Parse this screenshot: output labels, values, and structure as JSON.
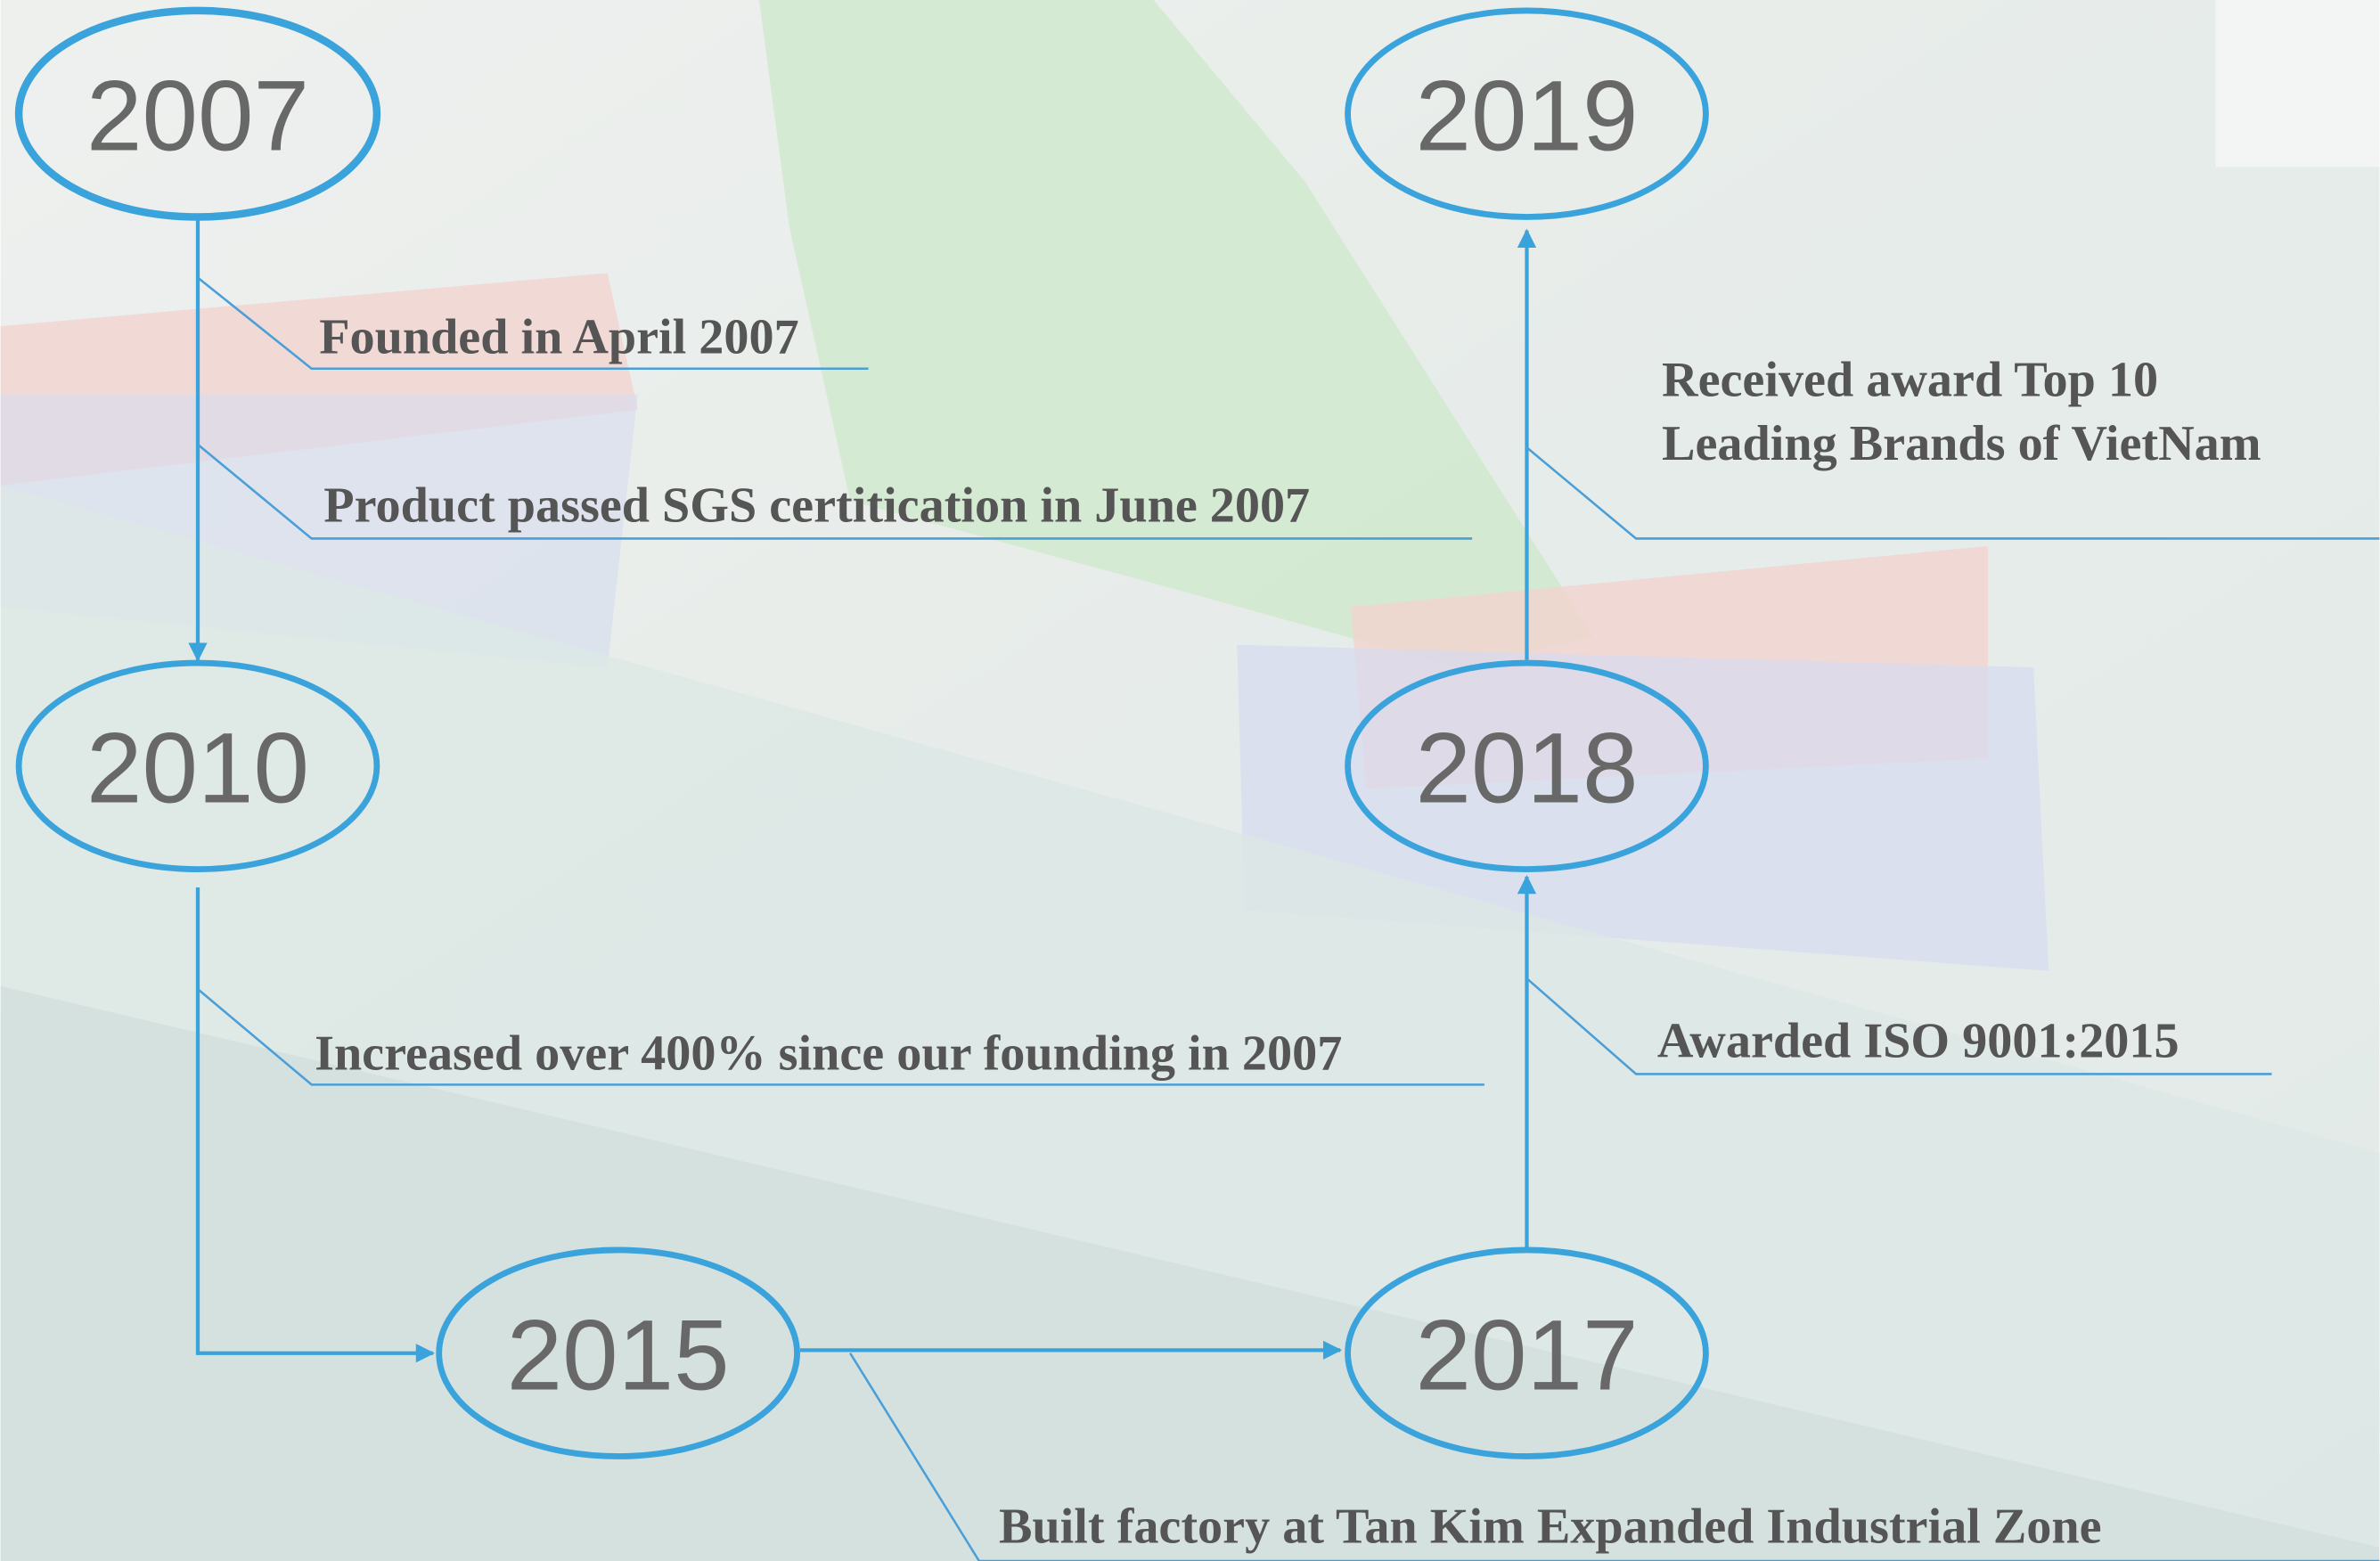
{
  "milestones": [
    {
      "year": "2007",
      "events": [
        [
          "Founded in April 2007"
        ],
        [
          "Product passed SGS certitication in June 2007"
        ]
      ]
    },
    {
      "year": "2010",
      "events": [
        [
          "Increased over 400% since our founding in 2007"
        ]
      ]
    },
    {
      "year": "2015",
      "events": [
        [
          "Built factory at Tan Kim Expanded Industrial Zone"
        ]
      ]
    },
    {
      "year": "2017",
      "events": [
        [
          "Awarded ISO 9001:2015"
        ]
      ]
    },
    {
      "year": "2018",
      "events": [
        [
          "Received award Top 10",
          "Leading Brands of VietNam"
        ]
      ]
    },
    {
      "year": "2019",
      "events": []
    }
  ]
}
